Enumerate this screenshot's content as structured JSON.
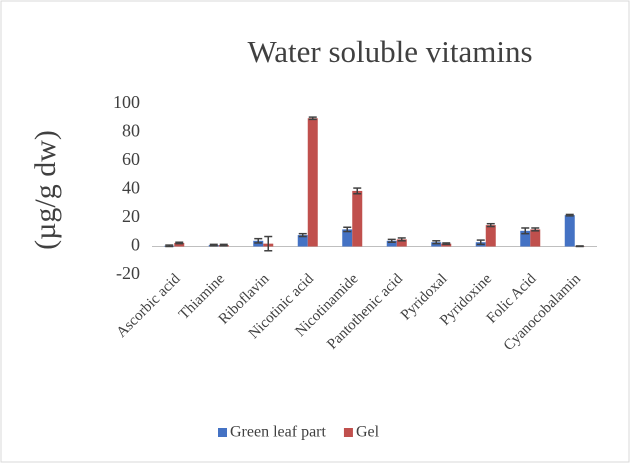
{
  "chart_data": {
    "type": "bar",
    "title": "Water soluble vitamins",
    "y_label": "(µg/g dw)",
    "categories": [
      "Ascorbic acid",
      "Thiamine",
      "Riboflavin",
      "Nicotinic acid",
      "Nicotinamide",
      "Pantothenic acid",
      "Pyridoxal",
      "Pyridoxine",
      "Folic Acid",
      "Cyanocobalamin"
    ],
    "series": [
      {
        "name": "Green leaf part",
        "color": "#4472c4",
        "values": [
          0.5,
          1,
          4,
          8,
          12,
          4,
          3,
          3,
          11,
          22
        ],
        "errors": [
          0.5,
          0.5,
          1.5,
          1,
          1.5,
          1,
          1,
          1.5,
          2,
          0.5
        ]
      },
      {
        "name": "Gel",
        "color": "#c0504d",
        "values": [
          2.5,
          1,
          2,
          90,
          39,
          5,
          2,
          15,
          12,
          0.2
        ],
        "errors": [
          0.5,
          0.5,
          5,
          0.8,
          2,
          1,
          0.5,
          1,
          1,
          0.2
        ]
      }
    ],
    "ylim": [
      -20,
      100
    ],
    "yticks": [
      -20,
      0,
      20,
      40,
      60,
      80,
      100
    ],
    "legend": "bottom"
  }
}
